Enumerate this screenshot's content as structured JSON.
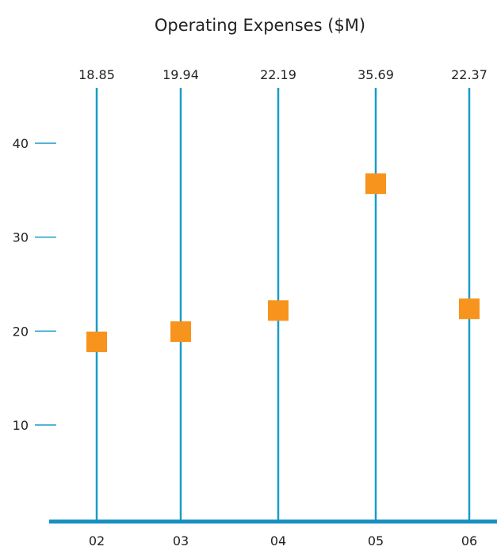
{
  "chart_data": {
    "type": "scatter",
    "title": "Operating Expenses ($M)",
    "xlabel": "",
    "ylabel": "",
    "categories": [
      "02",
      "03",
      "04",
      "05",
      "06"
    ],
    "values": [
      18.85,
      19.94,
      22.19,
      35.69,
      22.37
    ],
    "value_labels": [
      "18.85",
      "19.94",
      "22.19",
      "35.69",
      "22.37"
    ],
    "y_ticks": [
      10,
      20,
      30,
      40
    ],
    "y_tick_labels": [
      "10",
      "20",
      "30",
      "40"
    ],
    "ylim": [
      0,
      45
    ],
    "grid": false,
    "legend": "none",
    "colors": {
      "marker": "#F7941D",
      "line": "#1A9BC7",
      "baseline": "#1A8FC0",
      "text": "#222222"
    }
  }
}
